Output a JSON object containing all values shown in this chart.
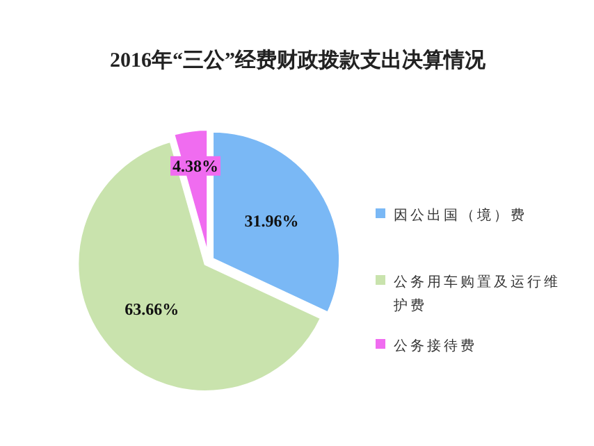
{
  "chart_data": {
    "type": "pie",
    "title": "2016年“三公”经费财政拨款支出决算情况",
    "categories": [
      "因公出国（境）费",
      "公务用车购置及运行维护费",
      "公务接待费"
    ],
    "values": [
      31.96,
      63.66,
      4.38
    ],
    "value_labels": [
      "31.96%",
      "63.66%",
      "4.38%"
    ],
    "colors": [
      "#7ab8f5",
      "#c9e3ad",
      "#f06cf0"
    ],
    "legend": "right"
  }
}
